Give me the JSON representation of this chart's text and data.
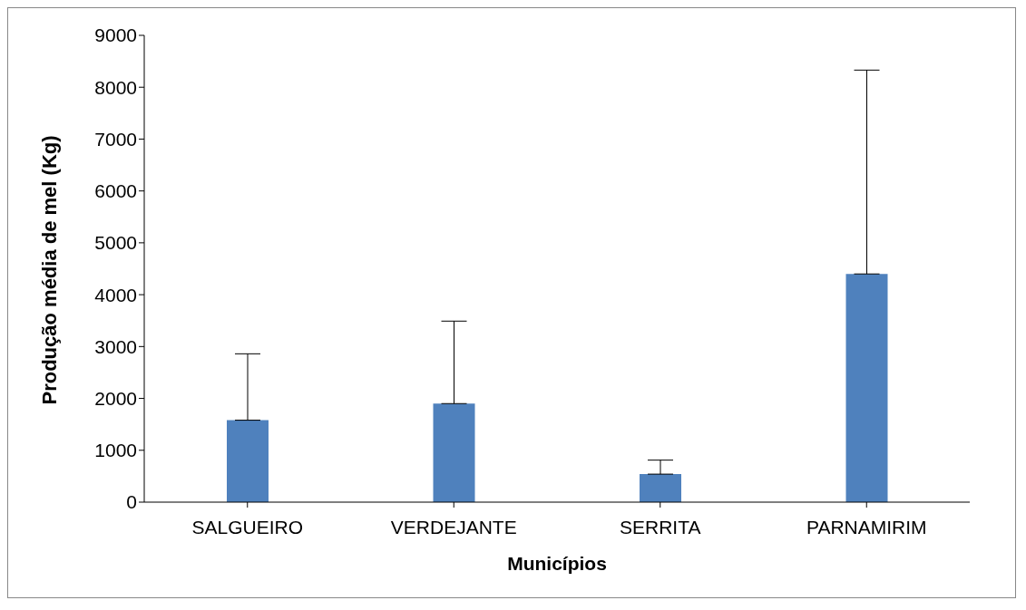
{
  "chart_data": {
    "type": "bar",
    "xlabel": "Municípios",
    "ylabel": "Produção média de mel (Kg)",
    "categories": [
      "SALGUEIRO",
      "VERDEJANTE",
      "SERRITA",
      "PARNAMIRIM"
    ],
    "values": [
      1580,
      1900,
      540,
      4400
    ],
    "color": "#4f81bd",
    "errors": [
      [
        1580,
        2860
      ],
      [
        1900,
        3490
      ],
      [
        540,
        810
      ],
      [
        4400,
        8330
      ]
    ],
    "ylim": [
      0,
      9000
    ],
    "yticks": [
      0,
      1000,
      2000,
      3000,
      4000,
      5000,
      6000,
      7000,
      8000,
      9000
    ],
    "grid": false
  }
}
